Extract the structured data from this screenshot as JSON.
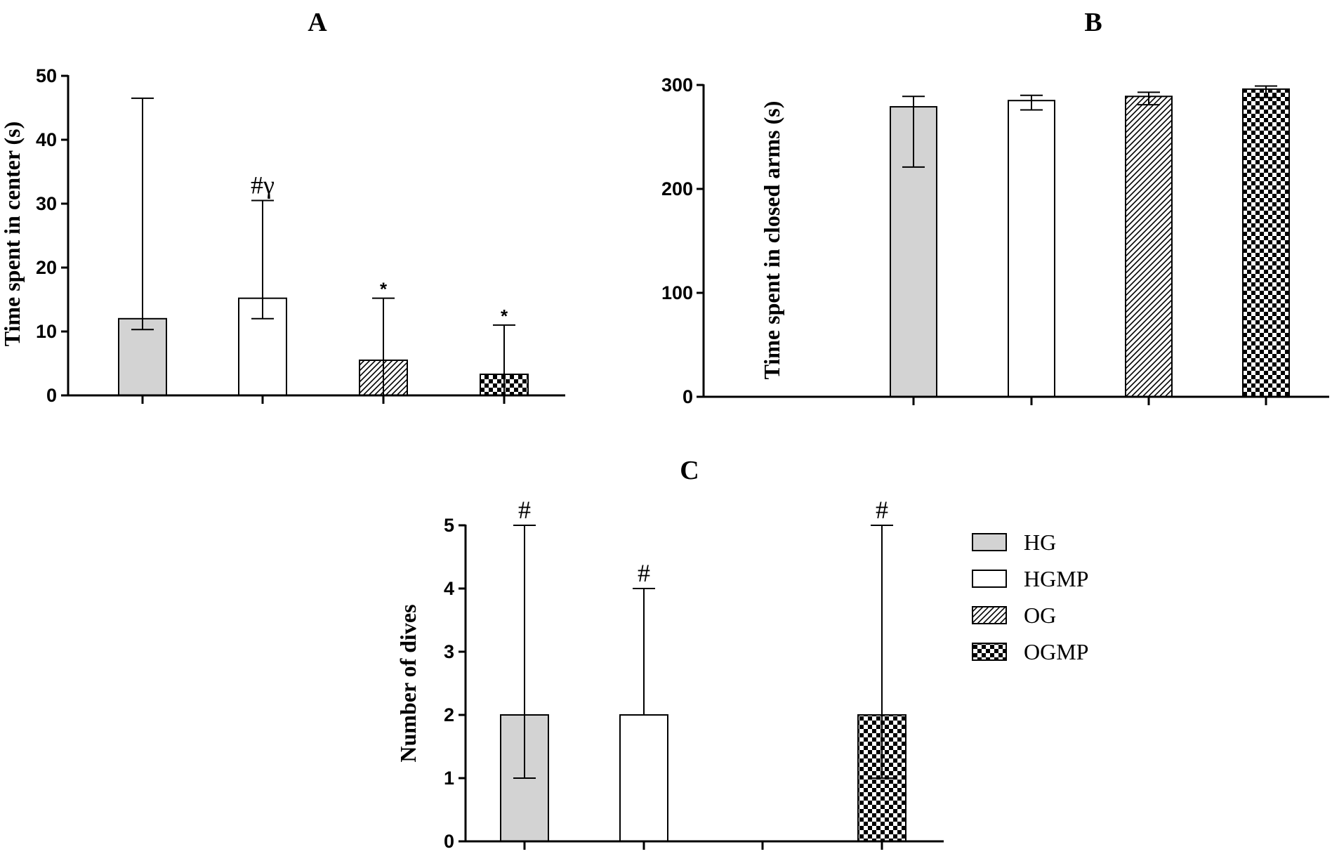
{
  "legend": {
    "items": [
      {
        "label": "HG",
        "fill": "grey"
      },
      {
        "label": "HGMP",
        "fill": "white"
      },
      {
        "label": "OG",
        "fill": "hatch"
      },
      {
        "label": "OGMP",
        "fill": "checker"
      }
    ]
  },
  "colors": {
    "grey_fill": "#d3d3d3",
    "stroke": "#000000",
    "background": "#ffffff"
  },
  "chart_data": [
    {
      "panel": "A",
      "type": "bar",
      "title": "A",
      "xlabel": "",
      "ylabel": "Time spent in center (s)",
      "ylim": [
        0,
        50
      ],
      "yticks": [
        0,
        10,
        20,
        30,
        40,
        50
      ],
      "categories": [
        "HG",
        "HGMP",
        "OG",
        "OGMP"
      ],
      "values": [
        12,
        15.2,
        5.5,
        3.3
      ],
      "error_low": [
        10.3,
        12,
        0,
        0
      ],
      "error_high": [
        46.5,
        30.5,
        15.2,
        11
      ],
      "annotations": [
        "",
        "#γ",
        "*",
        "*"
      ]
    },
    {
      "panel": "B",
      "type": "bar",
      "title": "B",
      "xlabel": "",
      "ylabel": "Time spent in closed arms (s)",
      "ylim": [
        0,
        300
      ],
      "yticks": [
        0,
        100,
        200,
        300
      ],
      "categories": [
        "HG",
        "HGMP",
        "OG",
        "OGMP"
      ],
      "values": [
        279,
        285,
        289,
        296
      ],
      "error_low": [
        221,
        276,
        281,
        288
      ],
      "error_high": [
        289,
        290,
        293,
        299
      ],
      "annotations": [
        "",
        "",
        "",
        ""
      ]
    },
    {
      "panel": "C",
      "type": "bar",
      "title": "C",
      "xlabel": "",
      "ylabel": "Number of dives",
      "ylim": [
        0,
        5
      ],
      "yticks": [
        0,
        1,
        2,
        3,
        4,
        5
      ],
      "categories": [
        "HG",
        "HGMP",
        "OG",
        "OGMP"
      ],
      "values": [
        2,
        2,
        0,
        2
      ],
      "error_low": [
        1,
        2,
        0,
        1
      ],
      "error_high": [
        5,
        4,
        0,
        5
      ],
      "annotations": [
        "#",
        "#",
        "",
        "#"
      ]
    }
  ]
}
